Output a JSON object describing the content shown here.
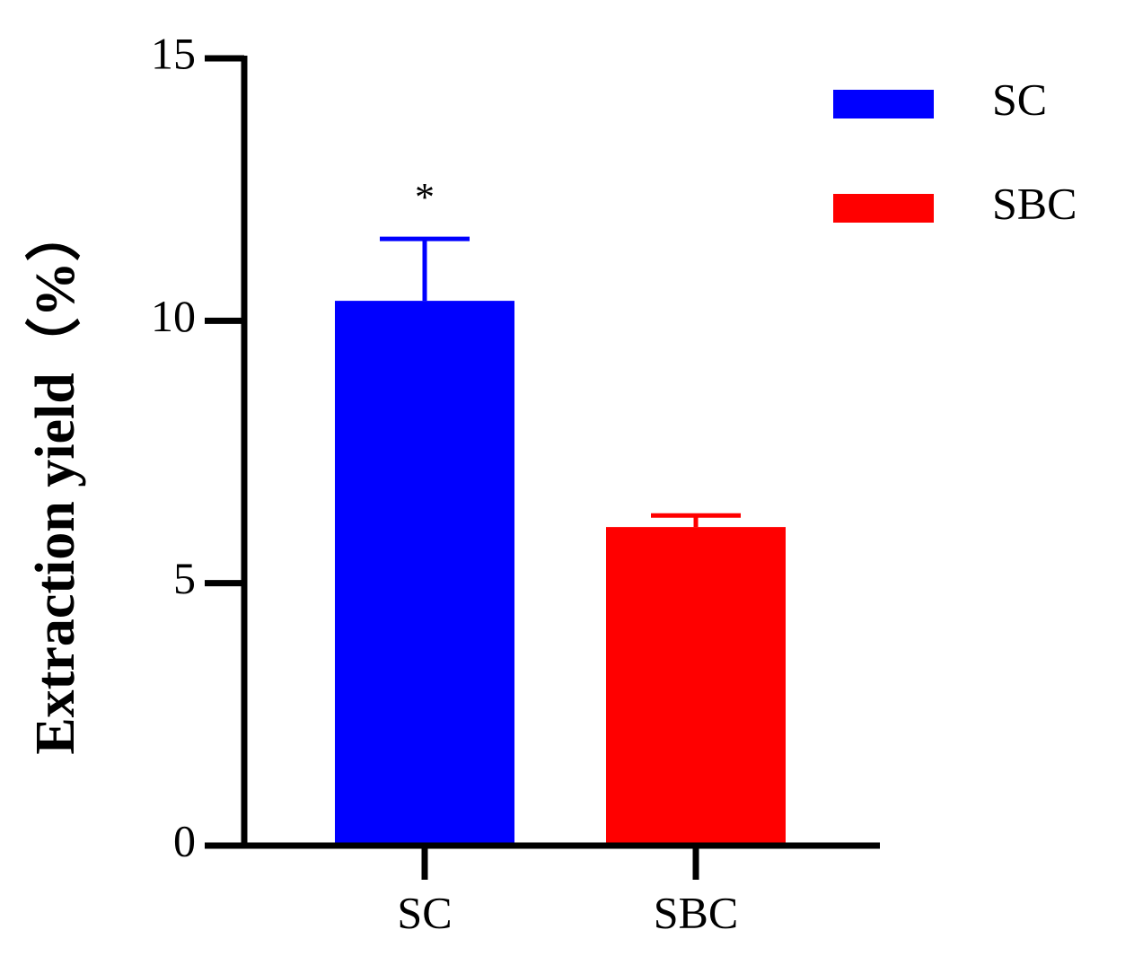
{
  "chart_data": {
    "type": "bar",
    "y_label": "Extraction yield（%）",
    "categories": [
      "SC",
      "SBC"
    ],
    "values": [
      10.38,
      6.07
    ],
    "errors": [
      1.18,
      0.22
    ],
    "colors": [
      "#0000ff",
      "#ff0000"
    ],
    "ylim": [
      0,
      15
    ],
    "yticks": [
      0,
      5,
      10,
      15
    ],
    "annotations": [
      {
        "text": "*",
        "category": "SC"
      }
    ],
    "legend": "upper right"
  }
}
